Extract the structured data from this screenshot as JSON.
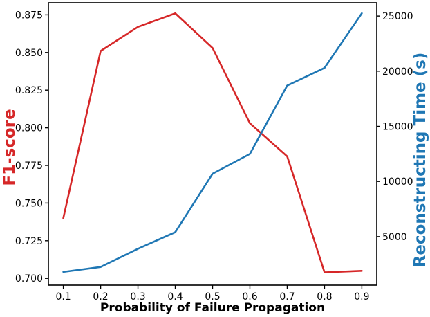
{
  "figure": {
    "background": "#ffffff",
    "x_axis_label": "Probability of Failure Propagation",
    "y_axis_label_left": "F1-score",
    "y_axis_label_right": "Reconstructing Time (s)"
  },
  "chart_data": {
    "type": "line",
    "title": "",
    "xlabel": "Probability of Failure Propagation",
    "ylabel_left": "F1-score",
    "ylabel_right": "Reconstructing Time (s)",
    "x": [
      0.1,
      0.2,
      0.3,
      0.4,
      0.5,
      0.6,
      0.7,
      0.8,
      0.9
    ],
    "series": [
      {
        "name": "F1-score",
        "axis": "left",
        "color": "#d62728",
        "values": [
          0.74,
          0.851,
          0.867,
          0.876,
          0.853,
          0.803,
          0.781,
          0.704,
          0.705
        ]
      },
      {
        "name": "Reconstructing Time (s)",
        "axis": "right",
        "color": "#1f77b4",
        "values": [
          1800,
          2250,
          3900,
          5400,
          10700,
          12500,
          18700,
          20300,
          25250
        ]
      }
    ],
    "xlim": [
      0.06,
      0.94
    ],
    "ylim_left": [
      0.6955,
      0.883
    ],
    "ylim_right": [
      600,
      26200
    ],
    "x_ticks": [
      0.1,
      0.2,
      0.3,
      0.4,
      0.5,
      0.6,
      0.7,
      0.8,
      0.9
    ],
    "x_tick_labels": [
      "0.1",
      "0.2",
      "0.3",
      "0.4",
      "0.5",
      "0.6",
      "0.7",
      "0.8",
      "0.9"
    ],
    "y_ticks_left": [
      0.7,
      0.725,
      0.75,
      0.775,
      0.8,
      0.825,
      0.85,
      0.875
    ],
    "y_tick_labels_left": [
      "0.700",
      "0.725",
      "0.750",
      "0.775",
      "0.800",
      "0.825",
      "0.850",
      "0.875"
    ],
    "y_ticks_right": [
      5000,
      10000,
      15000,
      20000,
      25000
    ],
    "y_tick_labels_right": [
      "5000",
      "10000",
      "15000",
      "20000",
      "25000"
    ],
    "grid": false,
    "legend": "none"
  },
  "style": {
    "axis_color": "#000000",
    "spine_width": 1.6,
    "tick_width": 1.4,
    "tick_length": 5,
    "tick_font_size": 14,
    "line_width": 2.6
  }
}
